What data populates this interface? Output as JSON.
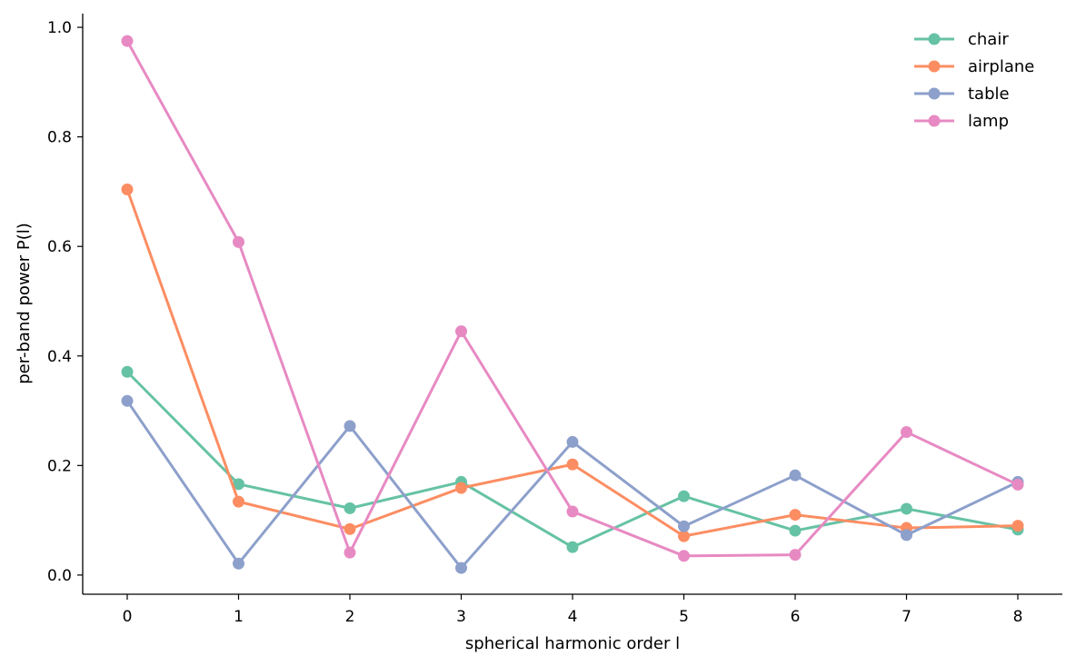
{
  "chart_data": {
    "type": "line",
    "title": "",
    "xlabel": "spherical harmonic order l",
    "ylabel": "per-band power P(l)",
    "x": [
      0,
      1,
      2,
      3,
      4,
      5,
      6,
      7,
      8
    ],
    "xlim": [
      -0.4,
      8.4
    ],
    "ylim": [
      -0.035,
      1.025
    ],
    "yticks": [
      0.0,
      0.2,
      0.4,
      0.6,
      0.8,
      1.0
    ],
    "ytick_labels": [
      "0.0",
      "0.2",
      "0.4",
      "0.6",
      "0.8",
      "1.0"
    ],
    "xtick_labels": [
      "0",
      "1",
      "2",
      "3",
      "4",
      "5",
      "6",
      "7",
      "8"
    ],
    "grid": false,
    "legend": "top-right",
    "series": [
      {
        "name": "chair",
        "color": "#66c2a5",
        "values": [
          0.371,
          0.166,
          0.122,
          0.17,
          0.051,
          0.144,
          0.081,
          0.121,
          0.083
        ]
      },
      {
        "name": "airplane",
        "color": "#fc8d62",
        "values": [
          0.704,
          0.134,
          0.084,
          0.159,
          0.202,
          0.071,
          0.11,
          0.086,
          0.09
        ]
      },
      {
        "name": "table",
        "color": "#8da0cb",
        "values": [
          0.318,
          0.021,
          0.272,
          0.013,
          0.243,
          0.089,
          0.182,
          0.073,
          0.17
        ]
      },
      {
        "name": "lamp",
        "color": "#e78ac3",
        "values": [
          0.975,
          0.608,
          0.041,
          0.445,
          0.116,
          0.035,
          0.037,
          0.261,
          0.165
        ]
      }
    ]
  }
}
